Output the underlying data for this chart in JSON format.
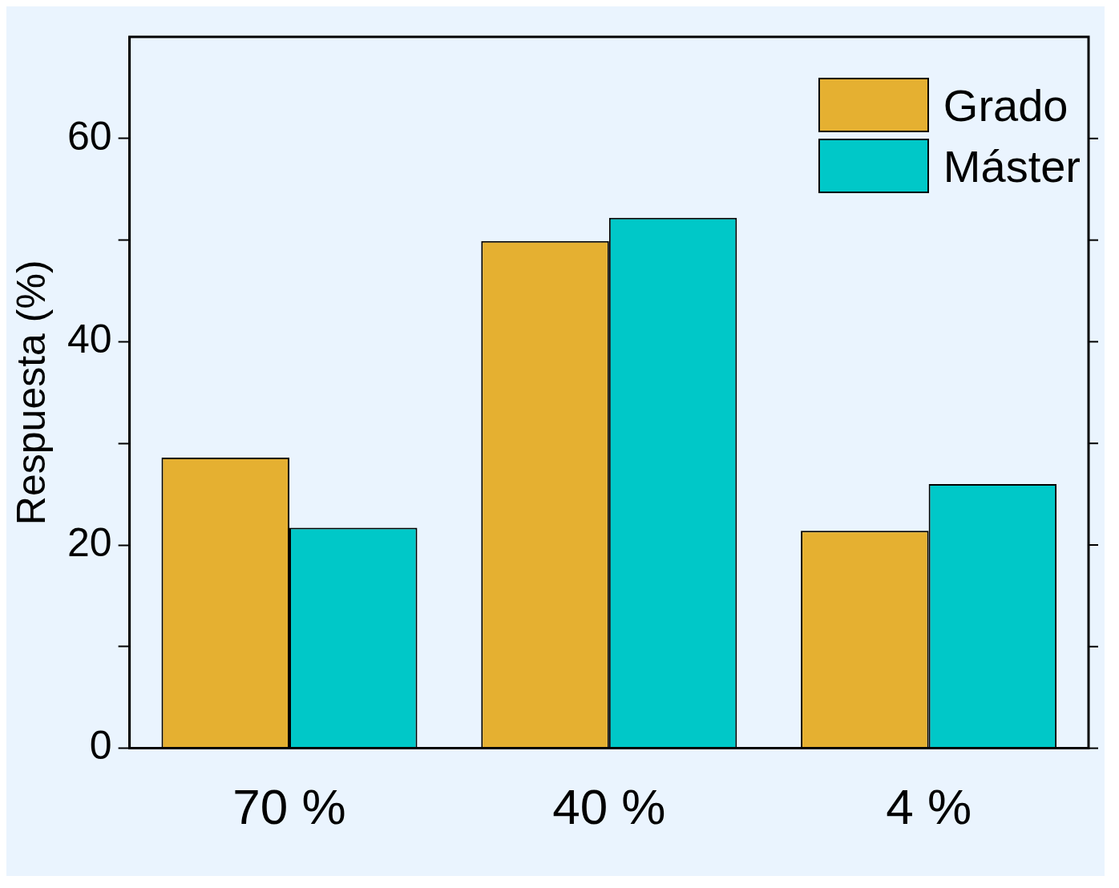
{
  "chart_data": {
    "type": "bar",
    "ylabel": "Respuesta (%)",
    "categories": [
      "70 %",
      "40 %",
      "4 %"
    ],
    "series": [
      {
        "name": "Grado",
        "color": "#e5b031",
        "values": [
          28.6,
          49.9,
          21.4
        ]
      },
      {
        "name": "Máster",
        "color": "#00c8c8",
        "values": [
          21.7,
          52.2,
          26.0
        ]
      }
    ],
    "ylim": [
      0,
      70
    ],
    "yticks": [
      0,
      {
        "value": 10,
        "label": null
      },
      20,
      {
        "value": 30,
        "label": null
      },
      40,
      {
        "value": 50,
        "label": null
      },
      60
    ],
    "grid": false,
    "legend": "top right"
  }
}
